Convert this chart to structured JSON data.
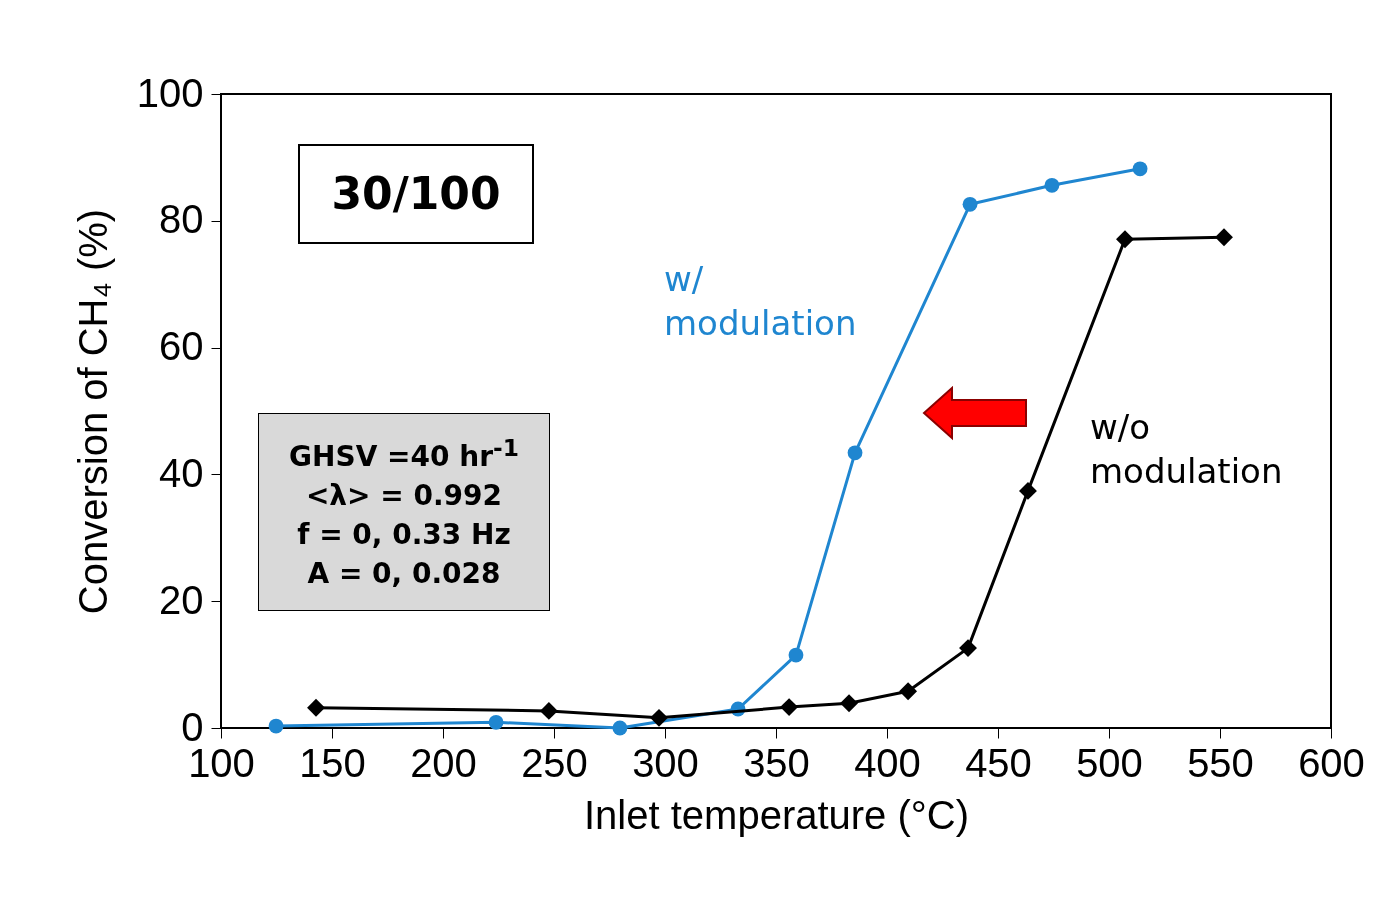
{
  "chart_data": {
    "type": "line",
    "xlabel": "Inlet temperature (°C)",
    "ylabel": "Conversion of CH₄ (%)",
    "xlim": [
      100,
      600
    ],
    "xticks": [
      100,
      150,
      200,
      250,
      300,
      350,
      400,
      450,
      500,
      550,
      600
    ],
    "ylim": [
      0,
      100
    ],
    "yticks": [
      0,
      20,
      40,
      60,
      80,
      100
    ],
    "grid": false,
    "series": [
      {
        "name": "w/ modulation",
        "color": "#1f86d0",
        "marker": "circle",
        "x": [
          124.8,
          223.9,
          279.7,
          332.9,
          359,
          385.6,
          437.4,
          474.3,
          514
        ],
        "values": [
          0.3,
          0.9,
          0,
          3.0,
          11.5,
          43.4,
          82.6,
          85.6,
          88.2
        ]
      },
      {
        "name": "w/o modulation",
        "color": "#000000",
        "marker": "diamond",
        "x": [
          142.8,
          247.7,
          297.3,
          355.9,
          382.9,
          409.5,
          436.5,
          463.5,
          507.2,
          551.8
        ],
        "values": [
          3.2,
          2.7,
          1.6,
          3.3,
          3.9,
          5.8,
          12.6,
          37.4,
          77.1,
          77.4
        ]
      }
    ],
    "annotations": [
      "30/100",
      "GHSV =40 hr$^{-1}$",
      "<λ> = 0.992",
      "f = 0, 0.33 Hz",
      "A = 0, 0.028"
    ]
  }
}
